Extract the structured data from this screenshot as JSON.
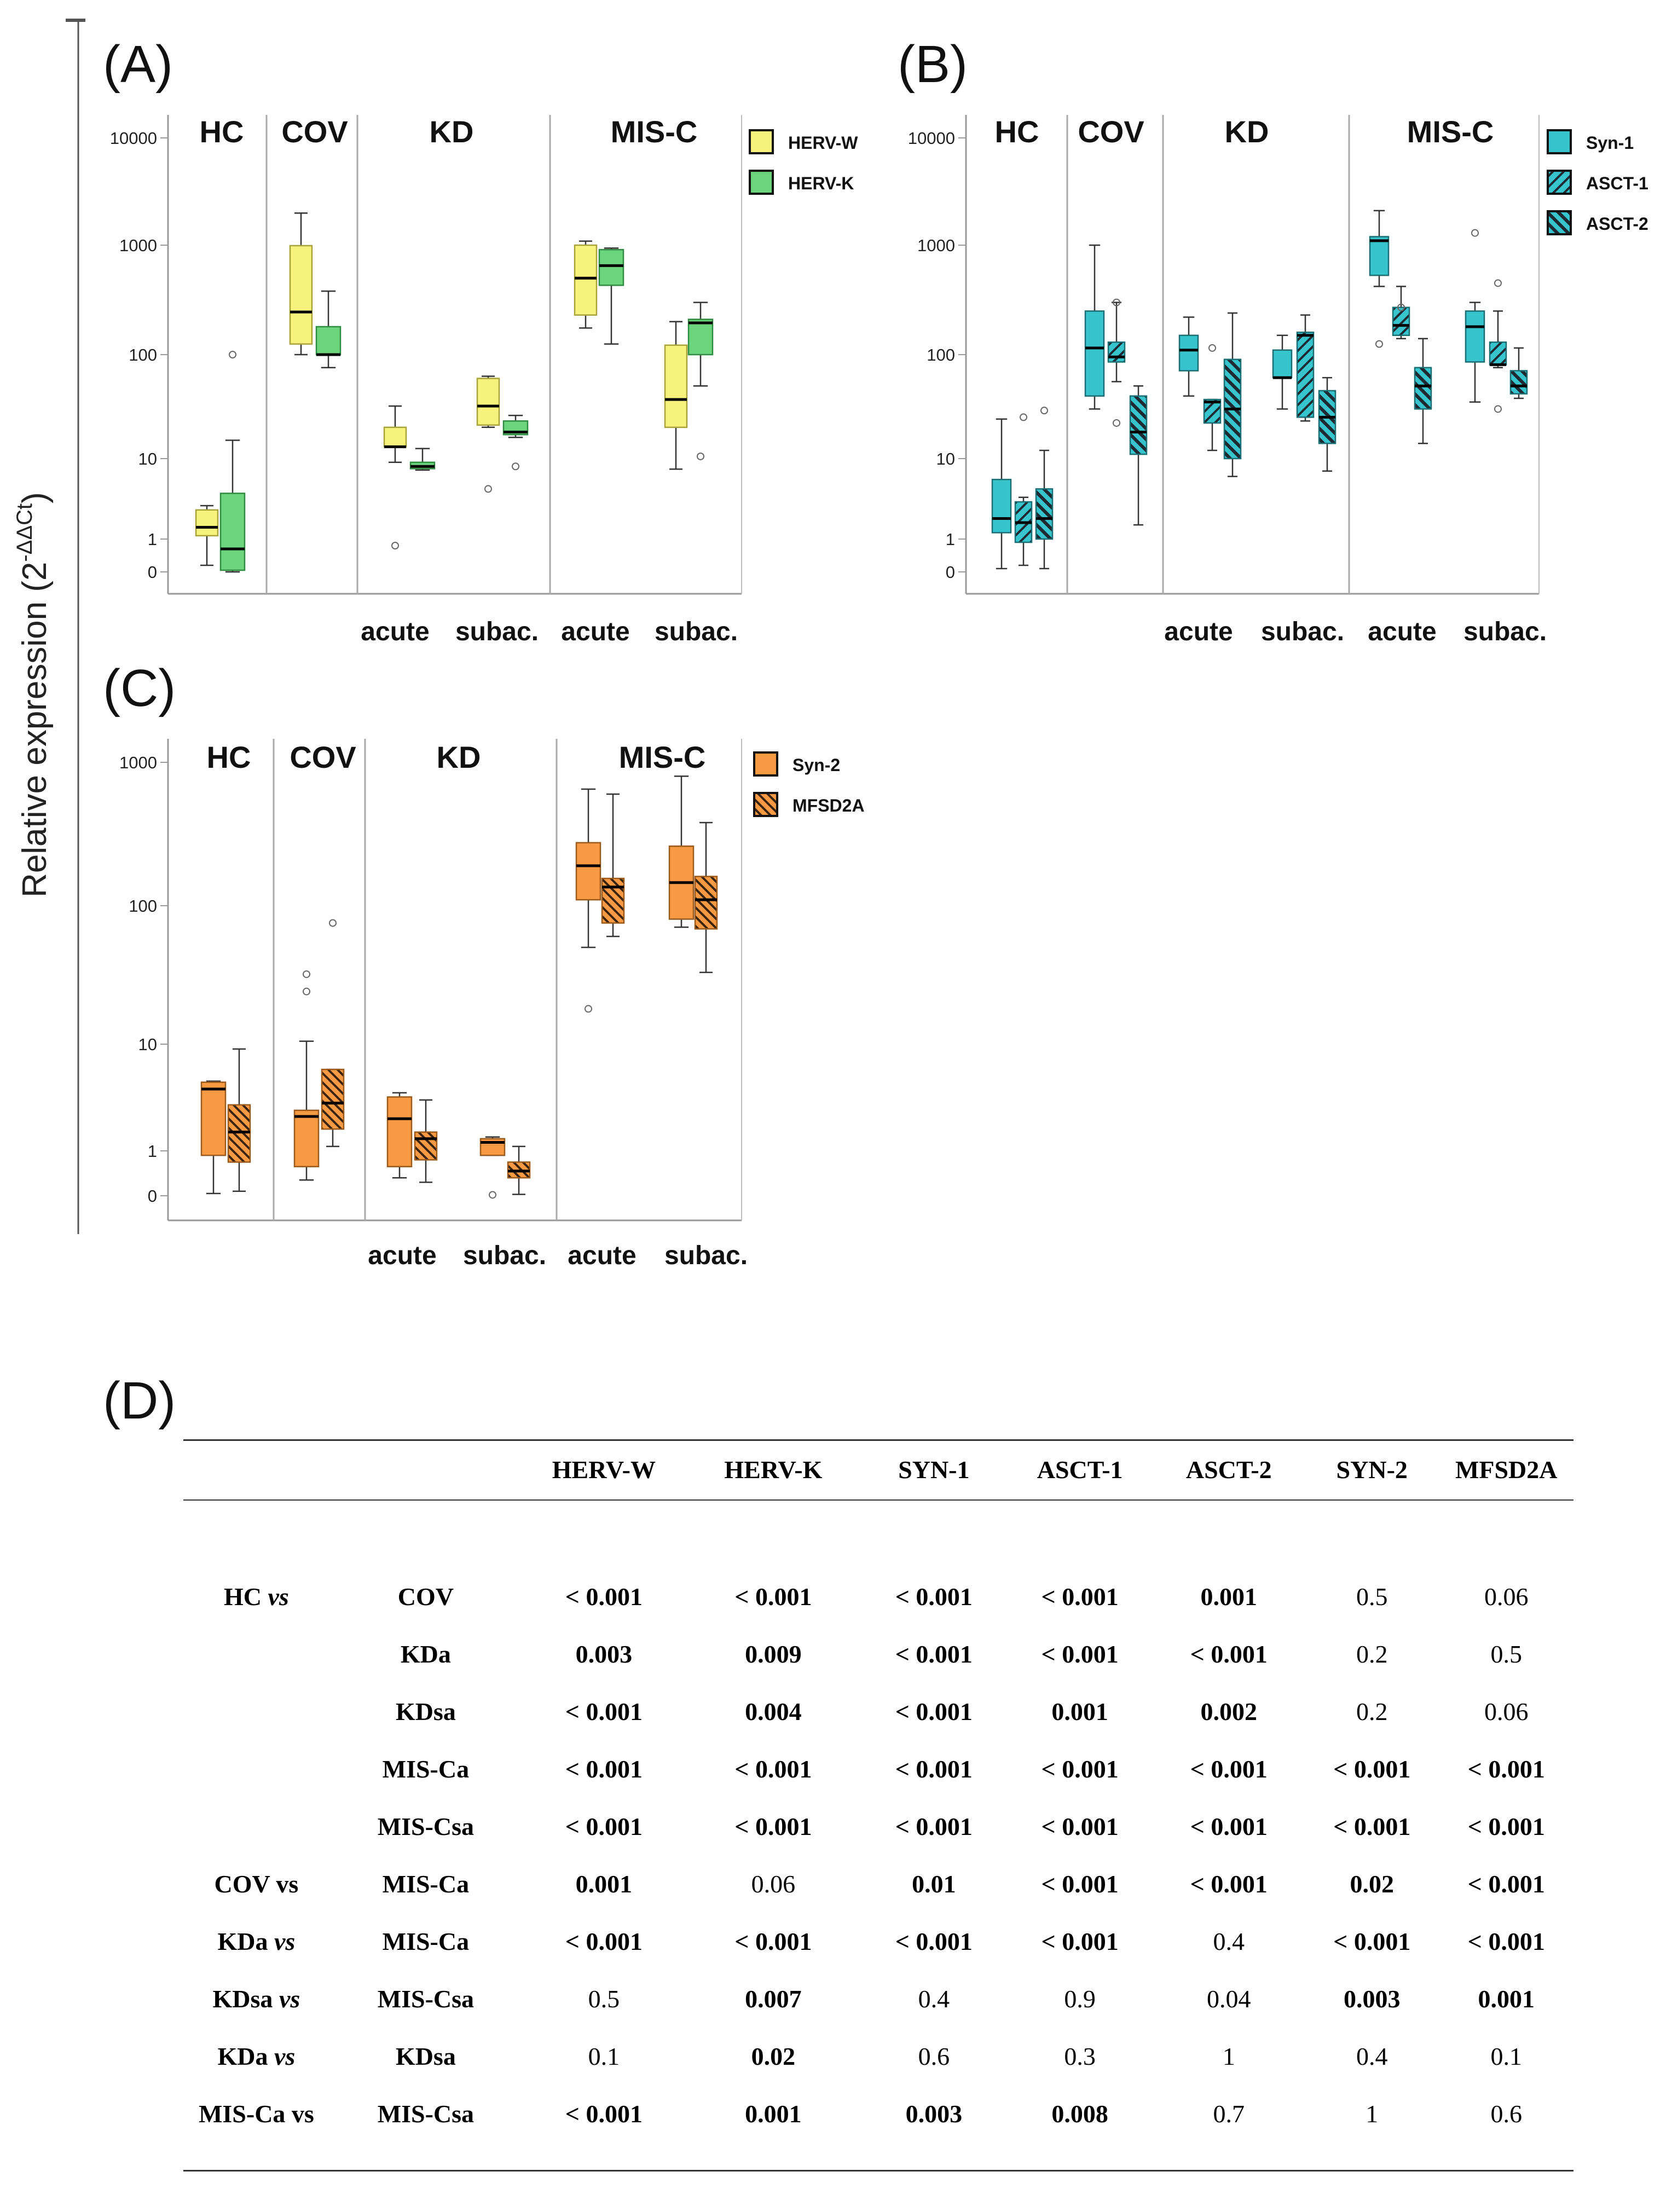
{
  "yaxis_label_main": "Relative expression (2",
  "yaxis_label_sup": "-ΔΔCt",
  "yaxis_label_close": ")",
  "chart_data": [
    {
      "panel": "(A)",
      "type": "box",
      "y_scale": "log-like",
      "y_ticks": [
        "10000",
        "1000",
        "100",
        "10",
        "1",
        "0"
      ],
      "groups": [
        "HC",
        "COV",
        "KD",
        "MIS-C"
      ],
      "subgroups": [
        "acute",
        "subac.",
        "acute",
        "subac."
      ],
      "legend": [
        {
          "name": "HERV-W",
          "color": "#f7f27c"
        },
        {
          "name": "HERV-K",
          "color": "#6dd47e"
        }
      ],
      "series": [
        {
          "name": "HERV-W",
          "boxes": [
            {
              "cat": "HC",
              "wl": 0.2,
              "q1": 1.1,
              "med": 1.4,
              "q3": 2.3,
              "wh": 2.6,
              "outliers": []
            },
            {
              "cat": "COV",
              "wl": 100,
              "q1": 125,
              "med": 245,
              "q3": 990,
              "wh": 1990,
              "outliers": []
            },
            {
              "cat": "KD acute",
              "wl": 9,
              "q1": 13,
              "med": 13,
              "q3": 20,
              "wh": 32,
              "outliers": [
                0.8
              ]
            },
            {
              "cat": "KD subac.",
              "wl": 20,
              "q1": 21,
              "med": 32,
              "q3": 59,
              "wh": 62,
              "outliers": [
                4.2
              ]
            },
            {
              "cat": "MIS-C acute",
              "wl": 175,
              "q1": 230,
              "med": 500,
              "q3": 1000,
              "wh": 1090,
              "outliers": []
            },
            {
              "cat": "MIS-C subac.",
              "wl": 7.4,
              "q1": 20,
              "med": 37,
              "q3": 122,
              "wh": 200,
              "outliers": []
            }
          ]
        },
        {
          "name": "HERV-K",
          "boxes": [
            {
              "cat": "HC",
              "wl": 0,
              "q1": 0.05,
              "med": 0.7,
              "q3": 3.7,
              "wh": 15,
              "outliers": [
                100
              ]
            },
            {
              "cat": "COV",
              "wl": 75,
              "q1": 100,
              "med": 100,
              "q3": 180,
              "wh": 380,
              "outliers": []
            },
            {
              "cat": "KD acute",
              "wl": 7.2,
              "q1": 7.5,
              "med": 8,
              "q3": 9,
              "wh": 12.5,
              "outliers": []
            },
            {
              "cat": "KD subac.",
              "wl": 16,
              "q1": 17,
              "med": 18,
              "q3": 23,
              "wh": 26,
              "outliers": [
                8
              ]
            },
            {
              "cat": "MIS-C acute",
              "wl": 125,
              "q1": 430,
              "med": 650,
              "q3": 910,
              "wh": 940,
              "outliers": []
            },
            {
              "cat": "MIS-C subac.",
              "wl": 50,
              "q1": 100,
              "med": 195,
              "q3": 210,
              "wh": 300,
              "outliers": [
                10.5
              ]
            }
          ]
        }
      ]
    },
    {
      "panel": "(B)",
      "type": "box",
      "y_scale": "log-like",
      "y_ticks": [
        "10000",
        "1000",
        "100",
        "10",
        "1",
        "0"
      ],
      "groups": [
        "HC",
        "COV",
        "KD",
        "MIS-C"
      ],
      "subgroups": [
        "acute",
        "subac.",
        "acute",
        "subac."
      ],
      "legend": [
        {
          "name": "Syn-1",
          "color": "#38c4cc"
        },
        {
          "name": "ASCT-1",
          "color": "#38c4cc"
        },
        {
          "name": "ASCT-2",
          "color": "#38c4cc"
        }
      ],
      "series": [
        {
          "name": "Syn-1",
          "boxes": [
            {
              "cat": "HC",
              "wl": 0.1,
              "q1": 1.2,
              "med": 1.8,
              "q3": 5.5,
              "wh": 24,
              "outliers": []
            },
            {
              "cat": "COV",
              "wl": 30,
              "q1": 40,
              "med": 115,
              "q3": 250,
              "wh": 1000,
              "outliers": []
            },
            {
              "cat": "KD acute",
              "wl": 40,
              "q1": 70,
              "med": 110,
              "q3": 150,
              "wh": 220,
              "outliers": []
            },
            {
              "cat": "KD subac.",
              "wl": 30,
              "q1": 60,
              "med": 60,
              "q3": 110,
              "wh": 150,
              "outliers": []
            },
            {
              "cat": "MIS-C acute",
              "wl": 420,
              "q1": 530,
              "med": 1100,
              "q3": 1200,
              "wh": 2100,
              "outliers": [
                125
              ]
            },
            {
              "cat": "MIS-C subac.",
              "wl": 35,
              "q1": 85,
              "med": 180,
              "q3": 250,
              "wh": 300,
              "outliers": [
                1300
              ]
            }
          ]
        },
        {
          "name": "ASCT-1",
          "boxes": [
            {
              "cat": "HC",
              "wl": 0.2,
              "q1": 0.9,
              "med": 1.6,
              "q3": 2.9,
              "wh": 3.3,
              "outliers": [
                25
              ]
            },
            {
              "cat": "COV",
              "wl": 55,
              "q1": 85,
              "med": 95,
              "q3": 130,
              "wh": 300,
              "outliers": [
                22,
                300
              ]
            },
            {
              "cat": "KD acute",
              "wl": 12,
              "q1": 22,
              "med": 35,
              "q3": 37,
              "wh": 37,
              "outliers": [
                115
              ]
            },
            {
              "cat": "KD subac.",
              "wl": 23,
              "q1": 25,
              "med": 150,
              "q3": 160,
              "wh": 230,
              "outliers": []
            },
            {
              "cat": "MIS-C acute",
              "wl": 140,
              "q1": 150,
              "med": 185,
              "q3": 270,
              "wh": 420,
              "outliers": [
                270
              ]
            },
            {
              "cat": "MIS-C subac.",
              "wl": 75,
              "q1": 80,
              "med": 80,
              "q3": 130,
              "wh": 250,
              "outliers": [
                450,
                30
              ]
            }
          ]
        },
        {
          "name": "ASCT-2",
          "boxes": [
            {
              "cat": "HC",
              "wl": 0.1,
              "q1": 1.0,
              "med": 1.8,
              "q3": 4.2,
              "wh": 12,
              "outliers": [
                29
              ]
            },
            {
              "cat": "COV",
              "wl": 1.5,
              "q1": 11,
              "med": 18,
              "q3": 40,
              "wh": 50,
              "outliers": []
            },
            {
              "cat": "KD acute",
              "wl": 6,
              "q1": 10,
              "med": 30,
              "q3": 90,
              "wh": 240,
              "outliers": []
            },
            {
              "cat": "KD subac.",
              "wl": 7,
              "q1": 14,
              "med": 25,
              "q3": 45,
              "wh": 60,
              "outliers": []
            },
            {
              "cat": "MIS-C acute",
              "wl": 14,
              "q1": 30,
              "med": 50,
              "q3": 75,
              "wh": 140,
              "outliers": []
            },
            {
              "cat": "MIS-C subac.",
              "wl": 38,
              "q1": 42,
              "med": 50,
              "q3": 70,
              "wh": 115,
              "outliers": []
            }
          ]
        }
      ]
    },
    {
      "panel": "(C)",
      "type": "box",
      "y_scale": "log-like",
      "y_ticks": [
        "1000",
        "100",
        "10",
        "1",
        "0"
      ],
      "groups": [
        "HC",
        "COV",
        "KD",
        "MIS-C"
      ],
      "subgroups": [
        "acute",
        "subac.",
        "acute",
        "subac."
      ],
      "legend": [
        {
          "name": "Syn-2",
          "color": "#f79a43"
        },
        {
          "name": "MFSD2A",
          "color": "#f79a43"
        }
      ],
      "series": [
        {
          "name": "Syn-2",
          "boxes": [
            {
              "cat": "HC",
              "wl": 0.05,
              "q1": 0.9,
              "med": 3.8,
              "q3": 4.4,
              "wh": 4.5,
              "outliers": []
            },
            {
              "cat": "COV",
              "wl": 0.35,
              "q1": 0.65,
              "med": 2.1,
              "q3": 2.4,
              "wh": 10.5,
              "outliers": [
                24,
                32
              ]
            },
            {
              "cat": "KD acute",
              "wl": 0.4,
              "q1": 0.65,
              "med": 2.0,
              "q3": 3.2,
              "wh": 3.5,
              "outliers": []
            },
            {
              "cat": "KD subac.",
              "wl": 0.9,
              "q1": 0.9,
              "med": 1.2,
              "q3": 1.3,
              "wh": 1.35,
              "outliers": [
                0.02
              ]
            },
            {
              "cat": "MIS-C acute",
              "wl": 50,
              "q1": 110,
              "med": 190,
              "q3": 275,
              "wh": 650,
              "outliers": [
                18
              ]
            },
            {
              "cat": "MIS-C subac.",
              "wl": 70,
              "q1": 80,
              "med": 145,
              "q3": 260,
              "wh": 800,
              "outliers": []
            }
          ]
        },
        {
          "name": "MFSD2A",
          "boxes": [
            {
              "cat": "HC",
              "wl": 0.1,
              "q1": 0.75,
              "med": 1.5,
              "q3": 2.7,
              "wh": 9,
              "outliers": []
            },
            {
              "cat": "COV",
              "wl": 1.1,
              "q1": 1.6,
              "med": 2.8,
              "q3": 5.8,
              "wh": 5.8,
              "outliers": [
                75
              ]
            },
            {
              "cat": "KD acute",
              "wl": 0.3,
              "q1": 0.8,
              "med": 1.3,
              "q3": 1.5,
              "wh": 3.0,
              "outliers": []
            },
            {
              "cat": "KD subac.",
              "wl": 0.03,
              "q1": 0.4,
              "med": 0.55,
              "q3": 0.75,
              "wh": 1.1,
              "outliers": []
            },
            {
              "cat": "MIS-C acute",
              "wl": 60,
              "q1": 75,
              "med": 135,
              "q3": 155,
              "wh": 600,
              "outliers": []
            },
            {
              "cat": "MIS-C subac.",
              "wl": 33,
              "q1": 68,
              "med": 110,
              "q3": 160,
              "wh": 380,
              "outliers": []
            }
          ]
        }
      ]
    }
  ],
  "panel_d": {
    "label": "(D)",
    "columns": [
      "HERV-W",
      "HERV-K",
      "SYN-1",
      "ASCT-1",
      "ASCT-2",
      "SYN-2",
      "MFSD2A"
    ],
    "rows": [
      {
        "group": "HC",
        "group_italic": "vs",
        "vs": "COV",
        "values": [
          "< 0.001",
          "< 0.001",
          "< 0.001",
          "< 0.001",
          "0.001",
          "0.5",
          "0.06"
        ],
        "bold": [
          true,
          true,
          true,
          true,
          true,
          false,
          false
        ]
      },
      {
        "group": "",
        "group_italic": "",
        "vs": "KDa",
        "values": [
          "0.003",
          "0.009",
          "< 0.001",
          "< 0.001",
          "< 0.001",
          "0.2",
          "0.5"
        ],
        "bold": [
          true,
          true,
          true,
          true,
          true,
          false,
          false
        ]
      },
      {
        "group": "",
        "group_italic": "",
        "vs": "KDsa",
        "values": [
          "< 0.001",
          "0.004",
          "< 0.001",
          "0.001",
          "0.002",
          "0.2",
          "0.06"
        ],
        "bold": [
          true,
          true,
          true,
          true,
          true,
          false,
          false
        ]
      },
      {
        "group": "",
        "group_italic": "",
        "vs": "MIS-Ca",
        "values": [
          "< 0.001",
          "< 0.001",
          "< 0.001",
          "< 0.001",
          "< 0.001",
          "< 0.001",
          "< 0.001"
        ],
        "bold": [
          true,
          true,
          true,
          true,
          true,
          true,
          true
        ]
      },
      {
        "group": "",
        "group_italic": "",
        "vs": "MIS-Csa",
        "values": [
          "< 0.001",
          "< 0.001",
          "< 0.001",
          "< 0.001",
          "< 0.001",
          "< 0.001",
          "< 0.001"
        ],
        "bold": [
          true,
          true,
          true,
          true,
          true,
          true,
          true
        ]
      },
      {
        "group": "COV vs",
        "group_italic": "",
        "vs": "MIS-Ca",
        "values": [
          "0.001",
          "0.06",
          "0.01",
          "< 0.001",
          "< 0.001",
          "0.02",
          "< 0.001"
        ],
        "bold": [
          true,
          false,
          true,
          true,
          true,
          true,
          true
        ]
      },
      {
        "group": "KDa",
        "group_italic": "vs",
        "vs": "MIS-Ca",
        "values": [
          "< 0.001",
          "< 0.001",
          "< 0.001",
          "< 0.001",
          "0.4",
          "< 0.001",
          "< 0.001"
        ],
        "bold": [
          true,
          true,
          true,
          true,
          false,
          true,
          true
        ]
      },
      {
        "group": "KDsa",
        "group_italic": "vs",
        "vs": "MIS-Csa",
        "values": [
          "0.5",
          "0.007",
          "0.4",
          "0.9",
          "0.04",
          "0.003",
          "0.001"
        ],
        "bold": [
          false,
          true,
          false,
          false,
          false,
          true,
          true
        ]
      },
      {
        "group": "KDa",
        "group_italic": "vs",
        "vs": "KDsa",
        "values": [
          "0.1",
          "0.02",
          "0.6",
          "0.3",
          "1",
          "0.4",
          "0.1"
        ],
        "bold": [
          false,
          true,
          false,
          false,
          false,
          false,
          false
        ]
      },
      {
        "group": "MIS-Ca vs",
        "group_italic": "",
        "vs": "MIS-Csa",
        "values": [
          "< 0.001",
          "0.001",
          "0.003",
          "0.008",
          "0.7",
          "1",
          "0.6"
        ],
        "bold": [
          true,
          true,
          true,
          true,
          false,
          false,
          false
        ]
      }
    ]
  }
}
